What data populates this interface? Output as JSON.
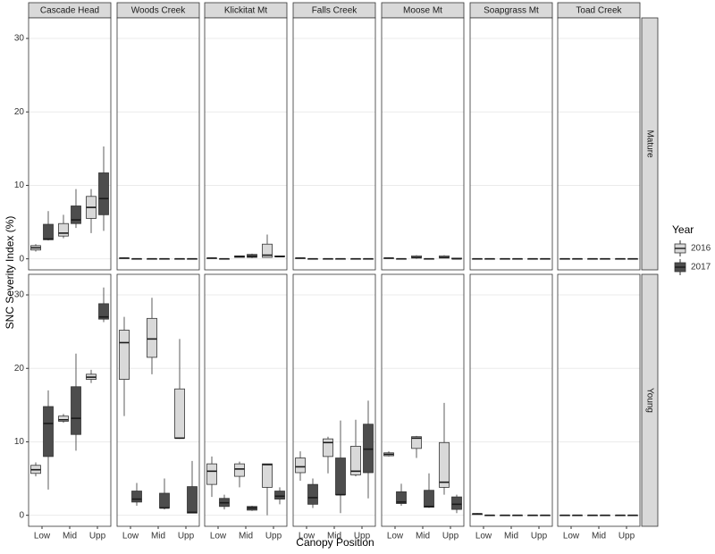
{
  "chart_data": {
    "type": "boxplot",
    "y_label": "SNC Severity Index (%)",
    "x_label": "Canopy Position",
    "legend_title": "Year",
    "columns": [
      "Cascade Head",
      "Woods Creek",
      "Klickitat Mt",
      "Falls Creek",
      "Moose Mt",
      "Soapgrass Mt",
      "Toad Creek"
    ],
    "rows": [
      "Mature",
      "Young"
    ],
    "categories": [
      "Low",
      "Mid",
      "Upp"
    ],
    "ylim": [
      -1.5,
      32.8
    ],
    "yticks": [
      0,
      10,
      20,
      30
    ],
    "grid": true,
    "series": [
      {
        "name": "2016",
        "color": "#d9d9d9",
        "values": [
          [
            [
              [
                1.0,
                1.2,
                1.5,
                1.8,
                2.0
              ],
              [
                2.8,
                3.1,
                3.5,
                4.8,
                6.0
              ],
              [
                3.5,
                5.5,
                7.0,
                8.5,
                9.5
              ]
            ],
            [
              [
                0.1,
                0.1,
                0.1,
                0.1,
                0.2
              ],
              [
                0,
                0,
                0,
                0,
                0
              ],
              [
                0,
                0,
                0,
                0,
                0
              ]
            ],
            [
              [
                0.1,
                0.1,
                0.1,
                0.1,
                0.2
              ],
              [
                0.2,
                0.2,
                0.3,
                0.4,
                0.4
              ],
              [
                0.2,
                0.2,
                0.5,
                2.0,
                3.3
              ]
            ],
            [
              [
                0.1,
                0.1,
                0.1,
                0.1,
                0.2
              ],
              [
                0,
                0,
                0,
                0,
                0
              ],
              [
                0,
                0,
                0,
                0,
                0
              ]
            ],
            [
              [
                0.1,
                0.1,
                0.1,
                0.1,
                0.2
              ],
              [
                0,
                0.1,
                0.2,
                0.4,
                0.5
              ],
              [
                0.1,
                0.1,
                0.2,
                0.4,
                0.5
              ]
            ],
            [
              [
                0,
                0,
                0,
                0,
                0
              ],
              [
                0,
                0,
                0,
                0,
                0
              ],
              [
                0,
                0,
                0,
                0,
                0
              ]
            ],
            [
              [
                0,
                0,
                0,
                0,
                0
              ],
              [
                0,
                0,
                0,
                0,
                0
              ],
              [
                0,
                0,
                0,
                0,
                0
              ]
            ]
          ],
          [
            [
              [
                5.3,
                5.7,
                6.2,
                6.8,
                7.2
              ],
              [
                12.6,
                12.8,
                13.0,
                13.5,
                13.8
              ],
              [
                18.0,
                18.5,
                18.8,
                19.2,
                19.8
              ]
            ],
            [
              [
                13.5,
                18.5,
                23.5,
                25.2,
                27.0
              ],
              [
                19.2,
                21.5,
                24.0,
                26.8,
                29.6
              ],
              [
                10.4,
                10.5,
                10.5,
                17.2,
                24.0
              ]
            ],
            [
              [
                2.5,
                4.2,
                6.0,
                7.0,
                8.0
              ],
              [
                3.8,
                5.3,
                6.3,
                7.0,
                7.3
              ],
              [
                0,
                3.8,
                6.9,
                7.0,
                7.0
              ]
            ],
            [
              [
                4.7,
                5.8,
                6.6,
                7.8,
                8.7
              ],
              [
                5.7,
                8.0,
                9.9,
                10.4,
                10.7
              ],
              [
                5.3,
                5.5,
                6.0,
                9.4,
                13.0
              ]
            ],
            [
              [
                8.0,
                8.1,
                8.3,
                8.5,
                8.7
              ],
              [
                7.8,
                9.1,
                10.5,
                10.7,
                10.8
              ],
              [
                2.8,
                3.8,
                4.5,
                9.9,
                15.3
              ]
            ],
            [
              [
                0.1,
                0.1,
                0.2,
                0.2,
                0.3
              ],
              [
                0,
                0,
                0,
                0,
                0
              ],
              [
                0,
                0,
                0,
                0,
                0
              ]
            ],
            [
              [
                0,
                0,
                0,
                0,
                0
              ],
              [
                0,
                0,
                0,
                0,
                0
              ],
              [
                0,
                0,
                0,
                0,
                0
              ]
            ]
          ]
        ]
      },
      {
        "name": "2017",
        "color": "#4d4d4d",
        "values": [
          [
            [
              [
                2.5,
                2.6,
                2.7,
                4.7,
                6.5
              ],
              [
                4.2,
                4.8,
                5.3,
                7.2,
                9.5
              ],
              [
                3.8,
                6.0,
                8.2,
                11.7,
                15.3
              ]
            ],
            [
              [
                0,
                0,
                0,
                0,
                0
              ],
              [
                0,
                0,
                0,
                0,
                0
              ],
              [
                0,
                0,
                0,
                0,
                0
              ]
            ],
            [
              [
                0,
                0,
                0,
                0,
                0
              ],
              [
                0.1,
                0.2,
                0.3,
                0.6,
                0.7
              ],
              [
                0.3,
                0.3,
                0.3,
                0.4,
                0.4
              ]
            ],
            [
              [
                0,
                0,
                0,
                0,
                0
              ],
              [
                0,
                0,
                0,
                0,
                0
              ],
              [
                0,
                0,
                0,
                0,
                0
              ]
            ],
            [
              [
                0,
                0,
                0,
                0,
                0
              ],
              [
                0,
                0,
                0,
                0,
                0
              ],
              [
                0,
                0,
                0,
                0.1,
                0.1
              ]
            ],
            [
              [
                0,
                0,
                0,
                0,
                0
              ],
              [
                0,
                0,
                0,
                0,
                0
              ],
              [
                0,
                0,
                0,
                0,
                0
              ]
            ],
            [
              [
                0,
                0,
                0,
                0,
                0
              ],
              [
                0,
                0,
                0,
                0,
                0
              ],
              [
                0,
                0,
                0,
                0,
                0
              ]
            ]
          ],
          [
            [
              [
                3.5,
                8.0,
                12.5,
                14.8,
                17.0
              ],
              [
                8.8,
                11.0,
                13.2,
                17.5,
                22.0
              ],
              [
                26.3,
                26.7,
                27.0,
                28.8,
                31.0
              ]
            ],
            [
              [
                1.3,
                1.8,
                2.2,
                3.3,
                4.4
              ],
              [
                0.8,
                1.0,
                1.0,
                3.0,
                5.0
              ],
              [
                0.3,
                0.3,
                0.4,
                3.9,
                7.4
              ]
            ],
            [
              [
                0.8,
                1.2,
                1.7,
                2.3,
                2.8
              ],
              [
                0.6,
                0.7,
                1.0,
                1.2,
                1.3
              ],
              [
                1.5,
                2.2,
                2.6,
                3.3,
                3.8
              ]
            ],
            [
              [
                1.0,
                1.5,
                2.4,
                4.2,
                5.0
              ],
              [
                0.3,
                2.8,
                2.8,
                7.8,
                12.9
              ],
              [
                2.3,
                5.8,
                9.0,
                12.4,
                15.6
              ]
            ],
            [
              [
                1.3,
                1.6,
                1.8,
                3.2,
                4.3
              ],
              [
                1.0,
                1.1,
                1.2,
                3.4,
                5.7
              ],
              [
                0.3,
                0.8,
                1.5,
                2.5,
                2.8
              ]
            ],
            [
              [
                0,
                0,
                0,
                0,
                0
              ],
              [
                0,
                0,
                0,
                0,
                0
              ],
              [
                0,
                0,
                0,
                0,
                0
              ]
            ],
            [
              [
                0,
                0,
                0,
                0,
                0
              ],
              [
                0,
                0,
                0,
                0,
                0
              ],
              [
                0,
                0,
                0,
                0,
                0
              ]
            ]
          ]
        ]
      }
    ]
  }
}
